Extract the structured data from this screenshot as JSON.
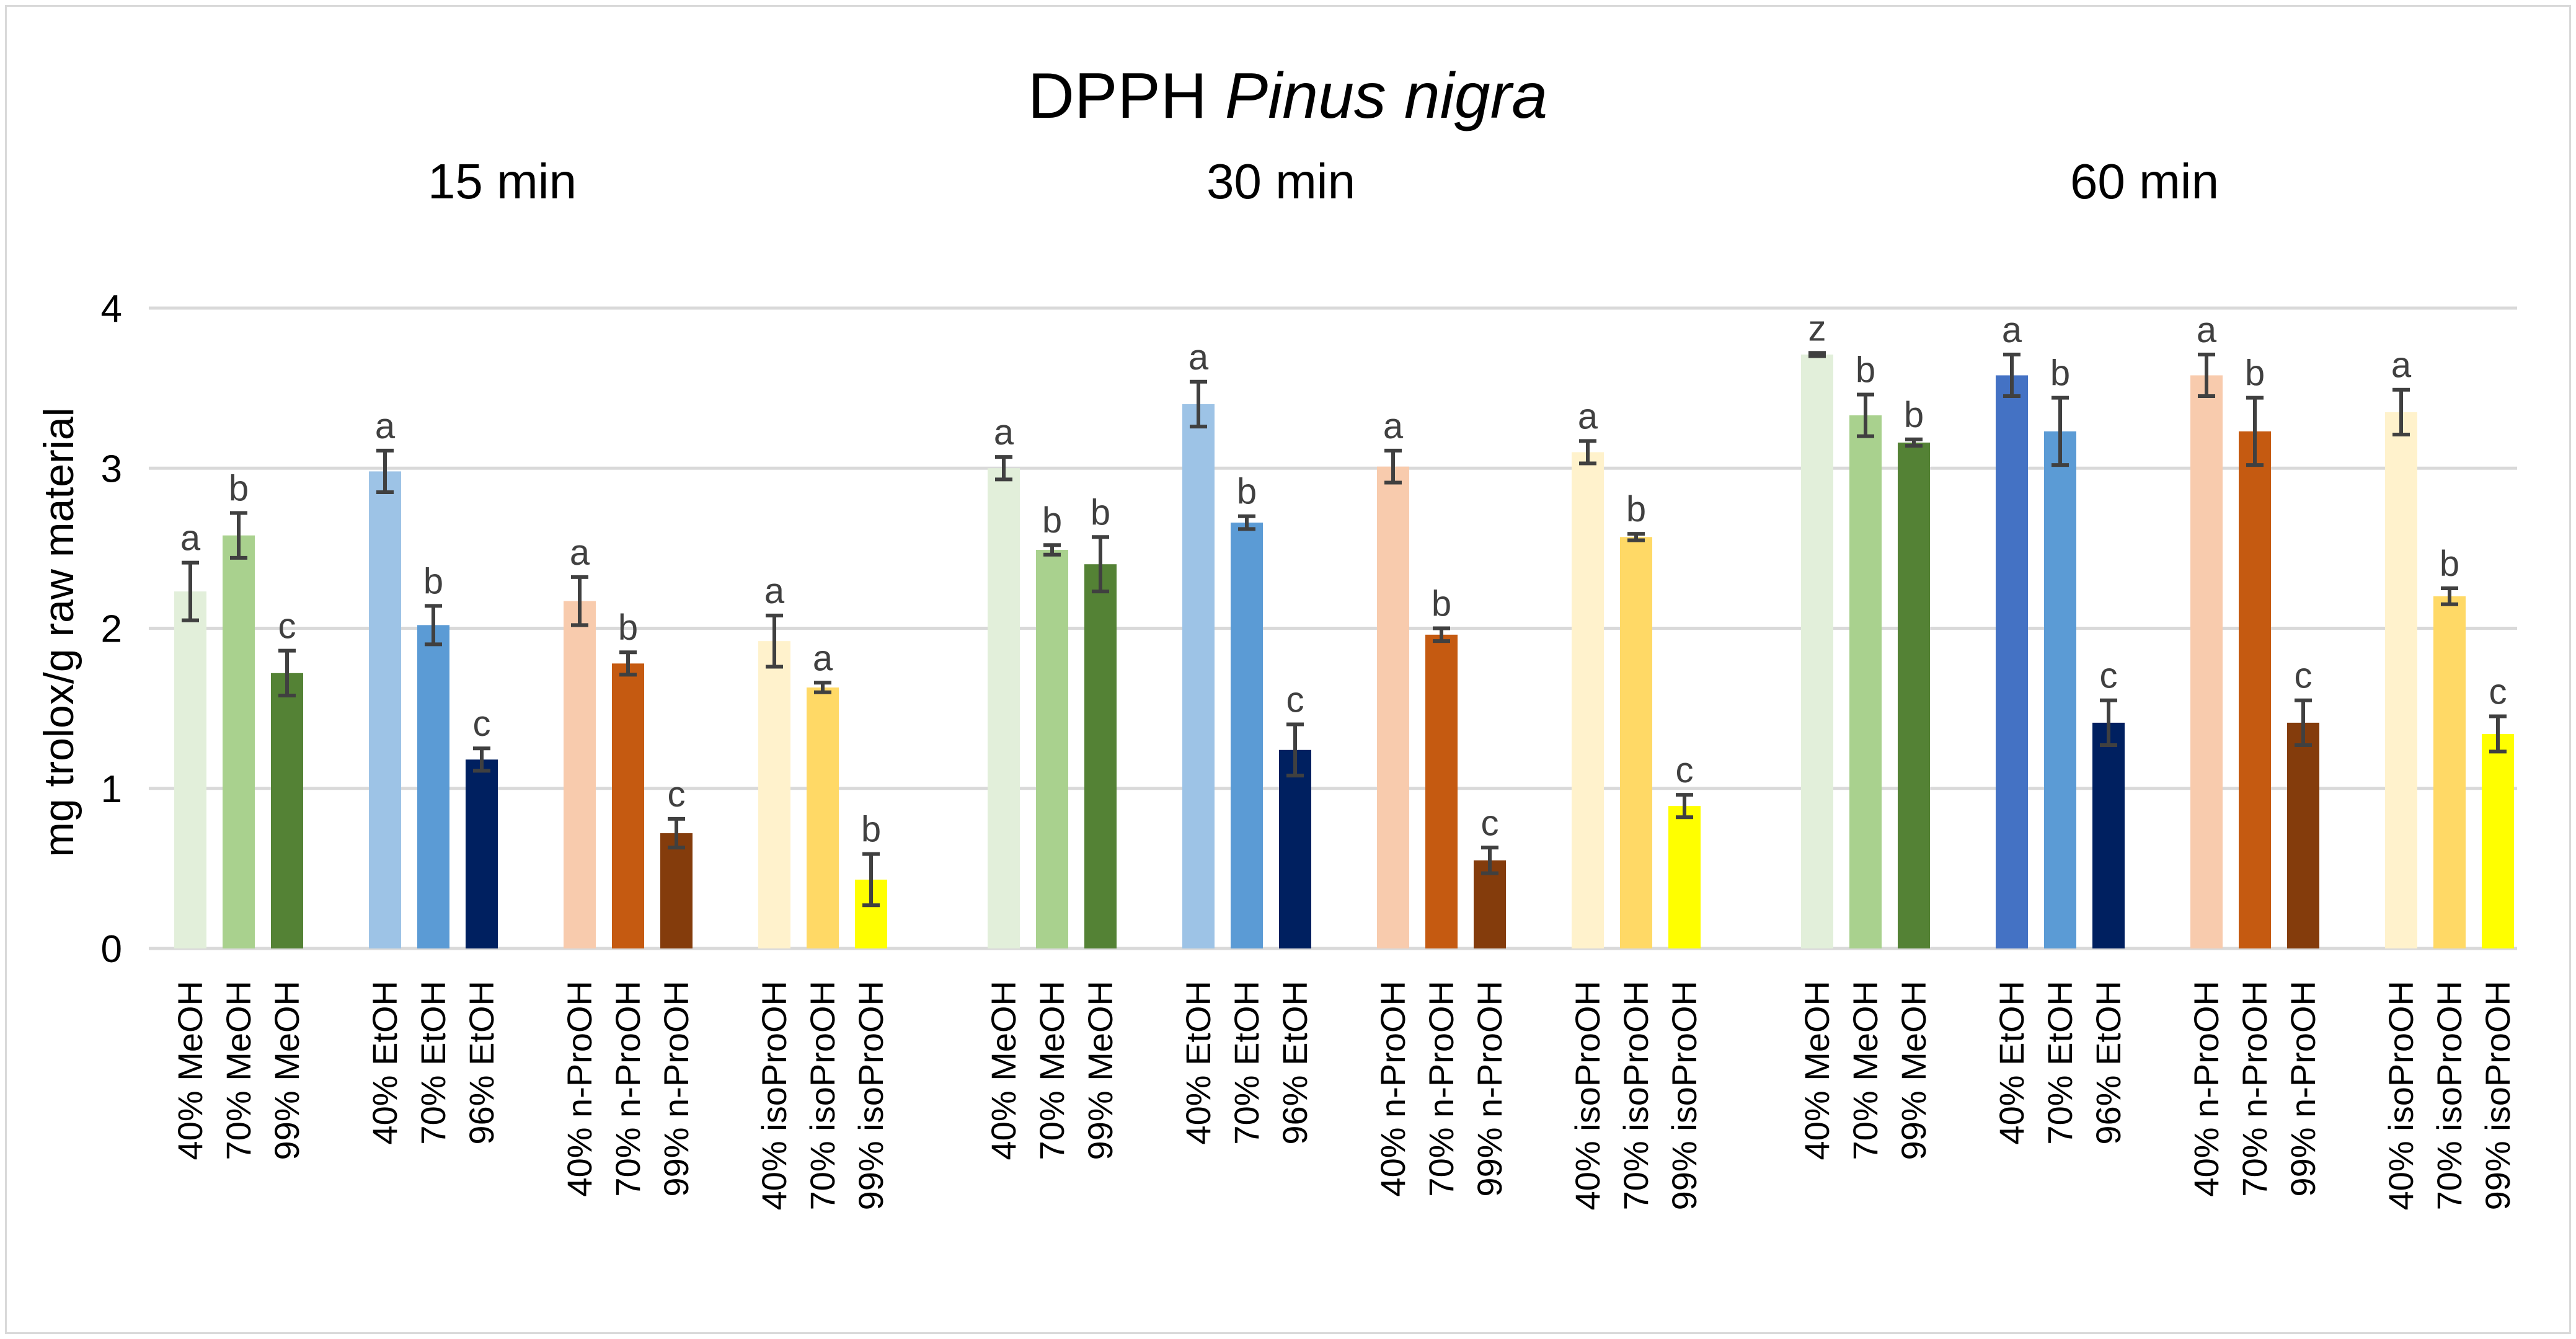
{
  "chart_data": {
    "type": "bar",
    "title_prefix": "DPPH",
    "title_species": "Pinus nigra",
    "ylabel": "mg trolox/g raw material",
    "xlabel": "",
    "ylim": [
      0,
      4
    ],
    "yticks": [
      "0",
      "1",
      "2",
      "3",
      "4"
    ],
    "grid": true,
    "periods": [
      {
        "label": "15 min",
        "groups": [
          {
            "solvent": "MeOH",
            "bars": [
              {
                "label": "40% MeOH",
                "value": 2.23,
                "error": 0.18,
                "sig": "a",
                "color": "#e2efda"
              },
              {
                "label": "70% MeOH",
                "value": 2.58,
                "error": 0.14,
                "sig": "b",
                "color": "#a9d18e"
              },
              {
                "label": "99% MeOH",
                "value": 1.72,
                "error": 0.14,
                "sig": "c",
                "color": "#548235"
              }
            ]
          },
          {
            "solvent": "EtOH",
            "bars": [
              {
                "label": "40% EtOH",
                "value": 2.98,
                "error": 0.13,
                "sig": "a",
                "color": "#9dc3e6"
              },
              {
                "label": "70% EtOH",
                "value": 2.02,
                "error": 0.12,
                "sig": "b",
                "color": "#5b9bd5"
              },
              {
                "label": "96% EtOH",
                "value": 1.18,
                "error": 0.07,
                "sig": "c",
                "color": "#002060"
              }
            ]
          },
          {
            "solvent": "n-ProOH",
            "bars": [
              {
                "label": "40% n-ProOH",
                "value": 2.17,
                "error": 0.15,
                "sig": "a",
                "color": "#f8cbad"
              },
              {
                "label": "70% n-ProOH",
                "value": 1.78,
                "error": 0.07,
                "sig": "b",
                "color": "#c55a11"
              },
              {
                "label": "99% n-ProOH",
                "value": 0.72,
                "error": 0.09,
                "sig": "c",
                "color": "#843c0c"
              }
            ]
          },
          {
            "solvent": "isoProOH",
            "bars": [
              {
                "label": "40% isoProOH",
                "value": 1.92,
                "error": 0.16,
                "sig": "a",
                "color": "#fff2cc"
              },
              {
                "label": "70% isoProOH",
                "value": 1.63,
                "error": 0.03,
                "sig": "a",
                "color": "#ffd966"
              },
              {
                "label": "99% isoProOH",
                "value": 0.43,
                "error": 0.16,
                "sig": "b",
                "color": "#ffff00"
              }
            ]
          }
        ]
      },
      {
        "label": "30 min",
        "groups": [
          {
            "solvent": "MeOH",
            "bars": [
              {
                "label": "40% MeOH",
                "value": 3.0,
                "error": 0.07,
                "sig": "a",
                "color": "#e2efda"
              },
              {
                "label": "70% MeOH",
                "value": 2.49,
                "error": 0.03,
                "sig": "b",
                "color": "#a9d18e"
              },
              {
                "label": "99% MeOH",
                "value": 2.4,
                "error": 0.17,
                "sig": "b",
                "color": "#548235"
              }
            ]
          },
          {
            "solvent": "EtOH",
            "bars": [
              {
                "label": "40% EtOH",
                "value": 3.4,
                "error": 0.14,
                "sig": "a",
                "color": "#9dc3e6"
              },
              {
                "label": "70% EtOH",
                "value": 2.66,
                "error": 0.04,
                "sig": "b",
                "color": "#5b9bd5"
              },
              {
                "label": "96% EtOH",
                "value": 1.24,
                "error": 0.16,
                "sig": "c",
                "color": "#002060"
              }
            ]
          },
          {
            "solvent": "n-ProOH",
            "bars": [
              {
                "label": "40% n-ProOH",
                "value": 3.01,
                "error": 0.1,
                "sig": "a",
                "color": "#f8cbad"
              },
              {
                "label": "70% n-ProOH",
                "value": 1.96,
                "error": 0.04,
                "sig": "b",
                "color": "#c55a11"
              },
              {
                "label": "99% n-ProOH",
                "value": 0.55,
                "error": 0.08,
                "sig": "c",
                "color": "#843c0c"
              }
            ]
          },
          {
            "solvent": "isoProOH",
            "bars": [
              {
                "label": "40% isoProOH",
                "value": 3.1,
                "error": 0.07,
                "sig": "a",
                "color": "#fff2cc"
              },
              {
                "label": "70% isoProOH",
                "value": 2.57,
                "error": 0.02,
                "sig": "b",
                "color": "#ffd966"
              },
              {
                "label": "99% isoProOH",
                "value": 0.89,
                "error": 0.07,
                "sig": "c",
                "color": "#ffff00"
              }
            ]
          }
        ]
      },
      {
        "label": "60 min",
        "groups": [
          {
            "solvent": "MeOH",
            "bars": [
              {
                "label": "40% MeOH",
                "value": 3.71,
                "error": 0.01,
                "sig": "z",
                "color": "#e2efda"
              },
              {
                "label": "70% MeOH",
                "value": 3.33,
                "error": 0.13,
                "sig": "b",
                "color": "#a9d18e"
              },
              {
                "label": "99% MeOH",
                "value": 3.16,
                "error": 0.02,
                "sig": "b",
                "color": "#548235"
              }
            ]
          },
          {
            "solvent": "EtOH",
            "bars": [
              {
                "label": "40% EtOH",
                "value": 3.58,
                "error": 0.13,
                "sig": "a",
                "color": "#4472c4"
              },
              {
                "label": "70% EtOH",
                "value": 3.23,
                "error": 0.21,
                "sig": "b",
                "color": "#5b9bd5"
              },
              {
                "label": "96% EtOH",
                "value": 1.41,
                "error": 0.14,
                "sig": "c",
                "color": "#002060"
              }
            ]
          },
          {
            "solvent": "n-ProOH",
            "bars": [
              {
                "label": "40% n-ProOH",
                "value": 3.58,
                "error": 0.13,
                "sig": "a",
                "color": "#f8cbad"
              },
              {
                "label": "70% n-ProOH",
                "value": 3.23,
                "error": 0.21,
                "sig": "b",
                "color": "#c55a11"
              },
              {
                "label": "99% n-ProOH",
                "value": 1.41,
                "error": 0.14,
                "sig": "c",
                "color": "#843c0c"
              }
            ]
          },
          {
            "solvent": "isoProOH",
            "bars": [
              {
                "label": "40% isoProOH",
                "value": 3.35,
                "error": 0.14,
                "sig": "a",
                "color": "#fff2cc"
              },
              {
                "label": "70% isoProOH",
                "value": 2.2,
                "error": 0.05,
                "sig": "b",
                "color": "#ffd966"
              },
              {
                "label": "99% isoProOH",
                "value": 1.34,
                "error": 0.11,
                "sig": "c",
                "color": "#ffff00"
              }
            ]
          }
        ]
      }
    ],
    "colors": {
      "gridline": "#d9d9d9",
      "error_bar": "#404040",
      "sig_text": "#404040",
      "frame": "#d9d9d9"
    }
  }
}
